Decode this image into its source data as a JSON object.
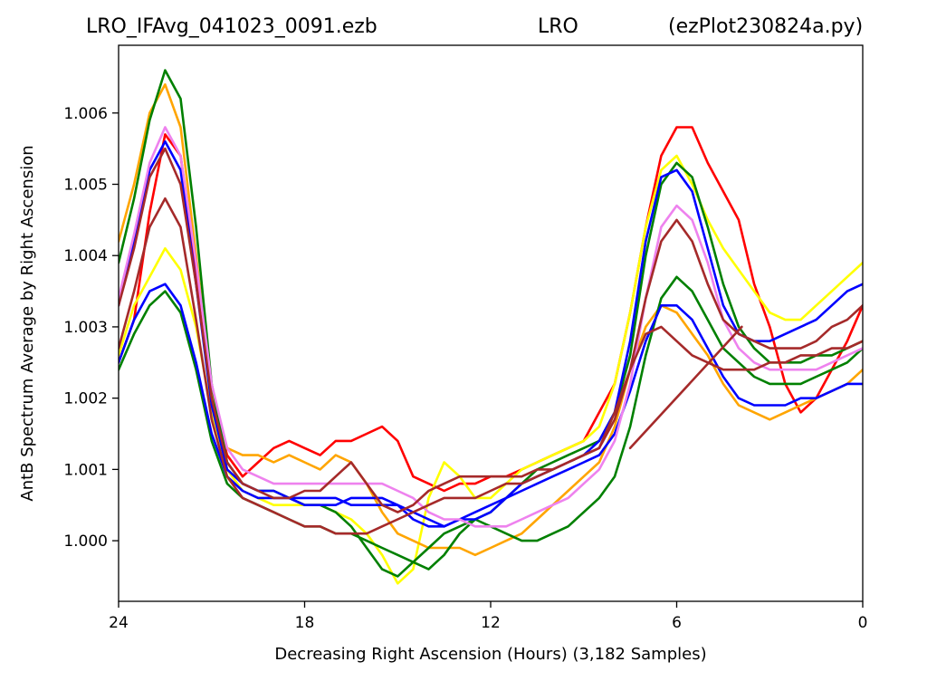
{
  "chart_data": {
    "type": "line",
    "title_left": "LRO_IFAvg_041023_0091.ezb",
    "title_center": "LRO",
    "title_right": "(ezPlot230824a.py)",
    "xlabel": "Decreasing Right Ascension (Hours) (3,182 Samples)",
    "ylabel": "AntB Spectrum Average by Right Ascension",
    "xlim": [
      24,
      0
    ],
    "ylim": [
      0.99915,
      1.00695
    ],
    "x_reversed": true,
    "grid": false,
    "xticks": [
      {
        "value": 24,
        "label": "24"
      },
      {
        "value": 18,
        "label": "18"
      },
      {
        "value": 12,
        "label": "12"
      },
      {
        "value": 6,
        "label": "6"
      },
      {
        "value": 0,
        "label": "0"
      }
    ],
    "yticks": [
      {
        "value": 1.0,
        "label": "1.000"
      },
      {
        "value": 1.001,
        "label": "1.001"
      },
      {
        "value": 1.002,
        "label": "1.002"
      },
      {
        "value": 1.003,
        "label": "1.003"
      },
      {
        "value": 1.004,
        "label": "1.004"
      },
      {
        "value": 1.005,
        "label": "1.005"
      },
      {
        "value": 1.006,
        "label": "1.006"
      }
    ],
    "series": [
      {
        "color": "#ff0000",
        "x": [
          24,
          23.5,
          23,
          22.5,
          22,
          21.5,
          21,
          20.5,
          20,
          19.5,
          19,
          18.5,
          18,
          17.5,
          17,
          16.5,
          16,
          15.5,
          15,
          14.5,
          14,
          13.5,
          13,
          12.5,
          12,
          11.5,
          11,
          10.5,
          10,
          9.5,
          9,
          8.5,
          8,
          7.5,
          7,
          6.5,
          6,
          5.5,
          5,
          4.5,
          4,
          3.5,
          3,
          2.5,
          2,
          1.5,
          1,
          0.5,
          0
        ],
        "y": [
          1.0025,
          1.0031,
          1.0046,
          1.0057,
          1.0054,
          1.0038,
          1.002,
          1.0012,
          1.0009,
          1.0011,
          1.0013,
          1.0014,
          1.0013,
          1.0012,
          1.0014,
          1.0014,
          1.0015,
          1.0016,
          1.0014,
          1.0009,
          1.0008,
          1.0007,
          1.0008,
          1.0008,
          1.0009,
          1.0009,
          1.001,
          1.0011,
          1.0012,
          1.0013,
          1.0014,
          1.0018,
          1.0022,
          1.0032,
          1.0044,
          1.0054,
          1.0058,
          1.0058,
          1.0053,
          1.0049,
          1.0045,
          1.0036,
          1.003,
          1.0022,
          1.0018,
          1.002,
          1.0024,
          1.0028,
          1.0033
        ]
      },
      {
        "color": "#ffff00",
        "x": [
          24,
          23.5,
          23,
          22.5,
          22,
          21.5,
          21,
          20.5,
          20,
          19.5,
          19,
          18.5,
          18,
          17.5,
          17,
          16.5,
          16,
          15.5,
          15,
          14.5,
          14,
          13.5,
          13,
          12.5,
          12,
          11.5,
          11,
          10.5,
          10,
          9.5,
          9,
          8.5,
          8,
          7.5,
          7,
          6.5,
          6,
          5.5,
          5,
          4.5,
          4,
          3.5,
          3,
          2.5,
          2,
          1.5,
          1,
          0.5,
          0
        ],
        "y": [
          1.0026,
          1.0033,
          1.0037,
          1.0041,
          1.0038,
          1.003,
          1.0018,
          1.001,
          1.0007,
          1.0006,
          1.0005,
          1.0005,
          1.0005,
          1.0005,
          1.0004,
          1.0003,
          1.0001,
          0.9998,
          0.9994,
          0.9996,
          1.0006,
          1.0011,
          1.0009,
          1.0006,
          1.0006,
          1.0008,
          1.001,
          1.0011,
          1.0012,
          1.0013,
          1.0014,
          1.0016,
          1.0022,
          1.0032,
          1.0044,
          1.0052,
          1.0054,
          1.005,
          1.0045,
          1.0041,
          1.0038,
          1.0035,
          1.0032,
          1.0031,
          1.0031,
          1.0033,
          1.0035,
          1.0037,
          1.0039
        ]
      },
      {
        "color": "#ffa500",
        "x": [
          24,
          23.5,
          23,
          22.5,
          22,
          21.5,
          21,
          20.5,
          20,
          19.5,
          19,
          18.5,
          18,
          17.5,
          17,
          16.5,
          16,
          15.5,
          15,
          14.5,
          14,
          13.5,
          13,
          12.5,
          12,
          11.5,
          11,
          10.5,
          10,
          9.5,
          9,
          8.5,
          8,
          7.5,
          7,
          6.5,
          6,
          5.5,
          5,
          4.5,
          4,
          3.5,
          3,
          2.5,
          2,
          1.5,
          1,
          0.5,
          0
        ],
        "y": [
          1.0042,
          1.005,
          1.006,
          1.0064,
          1.0058,
          1.004,
          1.0021,
          1.0013,
          1.0012,
          1.0012,
          1.0011,
          1.0012,
          1.0011,
          1.001,
          1.0012,
          1.0011,
          1.0008,
          1.0004,
          1.0001,
          1.0,
          0.9999,
          0.9999,
          0.9999,
          0.9998,
          0.9999,
          1.0,
          1.0001,
          1.0003,
          1.0005,
          1.0007,
          1.0009,
          1.0011,
          1.0016,
          1.0024,
          1.003,
          1.0033,
          1.0032,
          1.0029,
          1.0026,
          1.0022,
          1.0019,
          1.0018,
          1.0017,
          1.0018,
          1.0019,
          1.002,
          1.0021,
          1.0022,
          1.0024
        ]
      },
      {
        "color": "#008000",
        "x": [
          24,
          23.5,
          23,
          22.5,
          22,
          21.5,
          21,
          20.5,
          20,
          19.5,
          19,
          18.5,
          18,
          17.5,
          17,
          16.5,
          16,
          15.5,
          15,
          14.5,
          14,
          13.5,
          13,
          12.5,
          12,
          11.5,
          11,
          10.5,
          10,
          9.5,
          9,
          8.5,
          8,
          7.5,
          7,
          6.5,
          6,
          5.5,
          5,
          4.5,
          4,
          3.5,
          3,
          2.5,
          2,
          1.5,
          1,
          0.5,
          0
        ],
        "y": [
          1.0039,
          1.0048,
          1.0059,
          1.0066,
          1.0062,
          1.0044,
          1.0022,
          1.0011,
          1.0008,
          1.0007,
          1.0007,
          1.0006,
          1.0005,
          1.0005,
          1.0004,
          1.0002,
          0.9999,
          0.9996,
          0.9995,
          0.9997,
          0.9999,
          1.0001,
          1.0002,
          1.0003,
          1.0004,
          1.0006,
          1.0008,
          1.001,
          1.0011,
          1.0012,
          1.0013,
          1.0014,
          1.0018,
          1.0026,
          1.004,
          1.005,
          1.0053,
          1.0051,
          1.0044,
          1.0036,
          1.003,
          1.0027,
          1.0025,
          1.0025,
          1.0025,
          1.0026,
          1.0026,
          1.0027,
          1.0028
        ]
      },
      {
        "color": "#008000",
        "x": [
          24,
          23.5,
          23,
          22.5,
          22,
          21.5,
          21,
          20.5,
          20,
          19.5,
          19,
          18.5,
          18,
          17.5,
          17,
          16.5,
          16,
          15.5,
          15,
          14.5,
          14,
          13.5,
          13,
          12.5,
          12,
          11.5,
          11,
          10.5,
          10,
          9.5,
          9,
          8.5,
          8,
          7.5,
          7,
          6.5,
          6,
          5.5,
          5,
          4.5,
          4,
          3.5,
          3,
          2.5,
          2,
          1.5,
          1,
          0.5,
          0
        ],
        "y": [
          1.0024,
          1.0029,
          1.0033,
          1.0035,
          1.0032,
          1.0024,
          1.0014,
          1.0008,
          1.0006,
          1.0005,
          1.0004,
          1.0003,
          1.0002,
          1.0002,
          1.0001,
          1.0001,
          1.0,
          0.9999,
          0.9998,
          0.9997,
          0.9996,
          0.9998,
          1.0001,
          1.0003,
          1.0002,
          1.0001,
          1.0,
          1.0,
          1.0001,
          1.0002,
          1.0004,
          1.0006,
          1.0009,
          1.0016,
          1.0026,
          1.0034,
          1.0037,
          1.0035,
          1.0031,
          1.0027,
          1.0025,
          1.0023,
          1.0022,
          1.0022,
          1.0022,
          1.0023,
          1.0024,
          1.0025,
          1.0027
        ]
      },
      {
        "color": "#0000ff",
        "x": [
          24,
          23.5,
          23,
          22.5,
          22,
          21.5,
          21,
          20.5,
          20,
          19.5,
          19,
          18.5,
          18,
          17.5,
          17,
          16.5,
          16,
          15.5,
          15,
          14.5,
          14,
          13.5,
          13,
          12.5,
          12,
          11.5,
          11,
          10.5,
          10,
          9.5,
          9,
          8.5,
          8,
          7.5,
          7,
          6.5,
          6,
          5.5,
          5,
          4.5,
          4,
          3.5,
          3,
          2.5,
          2,
          1.5,
          1,
          0.5,
          0
        ],
        "y": [
          1.0033,
          1.0042,
          1.0052,
          1.0056,
          1.0052,
          1.0036,
          1.0019,
          1.001,
          1.0008,
          1.0007,
          1.0007,
          1.0006,
          1.0006,
          1.0006,
          1.0006,
          1.0005,
          1.0005,
          1.0005,
          1.0005,
          1.0003,
          1.0002,
          1.0002,
          1.0003,
          1.0003,
          1.0004,
          1.0006,
          1.0008,
          1.0009,
          1.001,
          1.0011,
          1.0012,
          1.0014,
          1.0018,
          1.0028,
          1.0042,
          1.0051,
          1.0052,
          1.0049,
          1.0041,
          1.0033,
          1.0029,
          1.0028,
          1.0028,
          1.0029,
          1.003,
          1.0031,
          1.0033,
          1.0035,
          1.0036
        ]
      },
      {
        "color": "#0000ff",
        "x": [
          24,
          23.5,
          23,
          22.5,
          22,
          21.5,
          21,
          20.5,
          20,
          19.5,
          19,
          18.5,
          18,
          17.5,
          17,
          16.5,
          16,
          15.5,
          15,
          14.5,
          14,
          13.5,
          13,
          12.5,
          12,
          11.5,
          11,
          10.5,
          10,
          9.5,
          9,
          8.5,
          8,
          7.5,
          7,
          6.5,
          6,
          5.5,
          5,
          4.5,
          4,
          3.5,
          3,
          2.5,
          2,
          1.5,
          1,
          0.5,
          0
        ],
        "y": [
          1.0025,
          1.0031,
          1.0035,
          1.0036,
          1.0033,
          1.0025,
          1.0015,
          1.0009,
          1.0007,
          1.0006,
          1.0006,
          1.0006,
          1.0005,
          1.0005,
          1.0005,
          1.0006,
          1.0006,
          1.0006,
          1.0005,
          1.0004,
          1.0003,
          1.0002,
          1.0003,
          1.0004,
          1.0005,
          1.0006,
          1.0007,
          1.0008,
          1.0009,
          1.001,
          1.0011,
          1.0012,
          1.0015,
          1.0021,
          1.0028,
          1.0033,
          1.0033,
          1.0031,
          1.0027,
          1.0023,
          1.002,
          1.0019,
          1.0019,
          1.0019,
          1.002,
          1.002,
          1.0021,
          1.0022,
          1.0022
        ]
      },
      {
        "color": "#ee82ee",
        "x": [
          24,
          23.5,
          23,
          22.5,
          22,
          21.5,
          21,
          20.5,
          20,
          19.5,
          19,
          18.5,
          18,
          17.5,
          17,
          16.5,
          16,
          15.5,
          15,
          14.5,
          14,
          13.5,
          13,
          12.5,
          12,
          11.5,
          11,
          10.5,
          10,
          9.5,
          9,
          8.5,
          8,
          7.5,
          7,
          6.5,
          6,
          5.5,
          5,
          4.5,
          4,
          3.5,
          3,
          2.5,
          2,
          1.5,
          1,
          0.5,
          0
        ],
        "y": [
          1.0034,
          1.0043,
          1.0053,
          1.0058,
          1.0054,
          1.0039,
          1.0022,
          1.0013,
          1.001,
          1.0009,
          1.0008,
          1.0008,
          1.0008,
          1.0008,
          1.0008,
          1.0008,
          1.0008,
          1.0008,
          1.0007,
          1.0006,
          1.0004,
          1.0003,
          1.0003,
          1.0002,
          1.0002,
          1.0002,
          1.0003,
          1.0004,
          1.0005,
          1.0006,
          1.0008,
          1.001,
          1.0014,
          1.0022,
          1.0034,
          1.0044,
          1.0047,
          1.0045,
          1.0039,
          1.0031,
          1.0027,
          1.0025,
          1.0024,
          1.0024,
          1.0024,
          1.0024,
          1.0025,
          1.0026,
          1.0027
        ]
      },
      {
        "color": "#a52a2a",
        "x": [
          24,
          23.5,
          23,
          22.5,
          22,
          21.5,
          21,
          20.5,
          20,
          19.5,
          19,
          18.5,
          18,
          17.5,
          17,
          16.5,
          16,
          15.5,
          15,
          14.5,
          14,
          13.5,
          13,
          12.5,
          12,
          11.5,
          11,
          10.5,
          10,
          9.5,
          9,
          8.5,
          8,
          7.5,
          7,
          6.5,
          6,
          5.5,
          5,
          4.5,
          4,
          3.5,
          3,
          2.5,
          2,
          1.5,
          1,
          0.5,
          0
        ],
        "y": [
          1.0033,
          1.0041,
          1.0051,
          1.0055,
          1.005,
          1.0036,
          1.002,
          1.0011,
          1.0008,
          1.0007,
          1.0006,
          1.0006,
          1.0007,
          1.0007,
          1.0009,
          1.0011,
          1.0008,
          1.0005,
          1.0004,
          1.0005,
          1.0007,
          1.0008,
          1.0009,
          1.0009,
          1.0009,
          1.0009,
          1.0009,
          1.001,
          1.001,
          1.0011,
          1.0012,
          1.0013,
          1.0017,
          1.0024,
          1.0034,
          1.0042,
          1.0045,
          1.0042,
          1.0036,
          1.0031,
          1.0029,
          1.0028,
          1.0027,
          1.0027,
          1.0027,
          1.0028,
          1.003,
          1.0031,
          1.0033
        ]
      },
      {
        "color": "#a52a2a",
        "x": [
          24,
          23.5,
          23,
          22.5,
          22,
          21.5,
          21,
          20.5,
          20,
          19.5,
          19,
          18.5,
          18,
          17.5,
          17,
          16.5,
          16,
          15.5,
          15,
          14.5,
          14,
          13.5,
          13,
          12.5,
          12,
          11.5,
          11,
          10.5,
          10,
          9.5,
          9,
          8.5,
          8,
          7.5,
          7,
          6.5,
          6,
          5.5,
          5,
          4.5,
          4,
          3.5,
          3,
          2.5,
          2,
          1.5,
          1,
          0.5,
          0
        ],
        "y": [
          1.0027,
          1.0035,
          1.0044,
          1.0048,
          1.0044,
          1.0031,
          1.0017,
          1.0009,
          1.0006,
          1.0005,
          1.0004,
          1.0003,
          1.0002,
          1.0002,
          1.0001,
          1.0001,
          1.0001,
          1.0002,
          1.0003,
          1.0004,
          1.0005,
          1.0006,
          1.0006,
          1.0006,
          1.0007,
          1.0008,
          1.0008,
          1.0009,
          1.001,
          1.0011,
          1.0012,
          1.0013,
          1.0018,
          1.0024,
          1.0029,
          1.003,
          1.0028,
          1.0026,
          1.0025,
          1.0024,
          1.0024,
          1.0024,
          1.0025,
          1.0025,
          1.0026,
          1.0026,
          1.0027,
          1.0027,
          1.0028
        ]
      },
      {
        "color": "#a52a2a",
        "x": [
          7.5,
          3.9
        ],
        "y": [
          1.0013,
          1.003
        ]
      }
    ]
  }
}
